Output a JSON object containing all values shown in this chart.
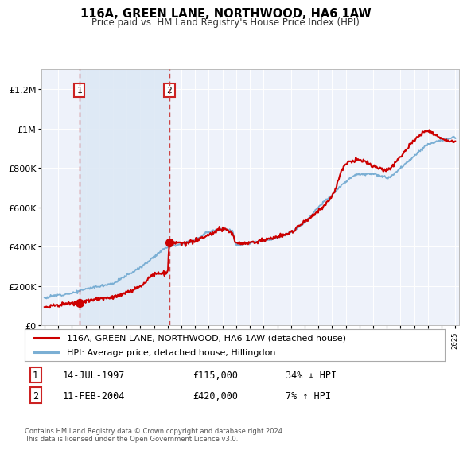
{
  "title": "116A, GREEN LANE, NORTHWOOD, HA6 1AW",
  "subtitle": "Price paid vs. HM Land Registry's House Price Index (HPI)",
  "bg_color": "#ffffff",
  "plot_bg_color": "#eef2fa",
  "legend_label_red": "116A, GREEN LANE, NORTHWOOD, HA6 1AW (detached house)",
  "legend_label_blue": "HPI: Average price, detached house, Hillingdon",
  "annotation1_label": "1",
  "annotation1_date": "14-JUL-1997",
  "annotation1_price": "£115,000",
  "annotation1_hpi": "34% ↓ HPI",
  "annotation2_label": "2",
  "annotation2_date": "11-FEB-2004",
  "annotation2_price": "£420,000",
  "annotation2_hpi": "7% ↑ HPI",
  "footer": "Contains HM Land Registry data © Crown copyright and database right 2024.\nThis data is licensed under the Open Government Licence v3.0.",
  "point1_year": 1997.54,
  "point1_value": 115000,
  "point2_year": 2004.12,
  "point2_value": 420000,
  "vline1_year": 1997.54,
  "vline2_year": 2004.12,
  "ylim_max": 1300000,
  "xlim_start": 1994.8,
  "xlim_end": 2025.3,
  "red_color": "#cc0000",
  "blue_color": "#7bafd4",
  "vline_color": "#cc4444",
  "box_edge_color": "#cc2222",
  "shaded_color": "#dde8f5"
}
